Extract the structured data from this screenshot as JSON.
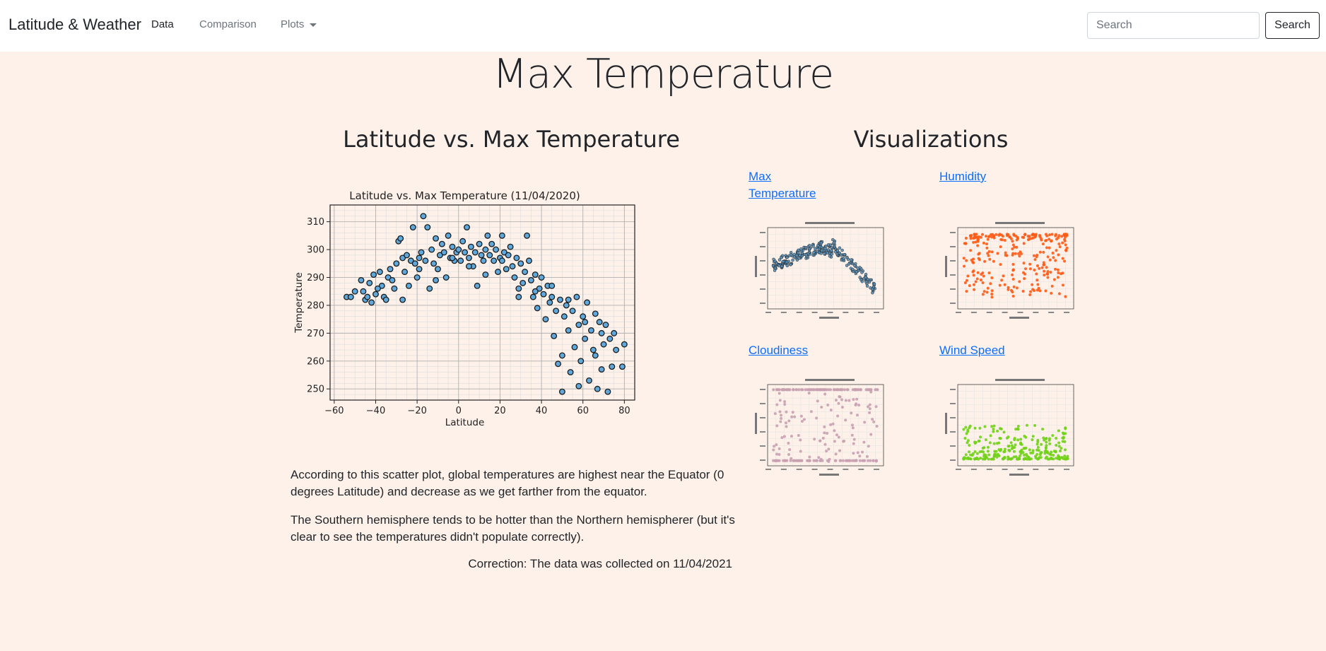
{
  "navbar": {
    "brand": "Latitude & Weather",
    "links": [
      {
        "label": "Data"
      },
      {
        "label": "Comparison"
      },
      {
        "label": "Plots"
      }
    ],
    "search_placeholder": "Search",
    "search_button": "Search"
  },
  "page": {
    "title": "Max Temperature",
    "chart_heading": "Latitude vs. Max Temperature",
    "viz_heading": "Visualizations",
    "paragraphs": [
      "According to this scatter plot, global temperatures are highest near the Equator (0 degrees Latitude) and decrease as we get farther from the equator.",
      "The Southern hemisphere tends to be hotter than the Northern hemispherer (but it's clear to see the temperatures didn't populate correctly)."
    ],
    "correction": "Correction: The data was collected on 11/04/2021"
  },
  "visualizations": [
    {
      "label": "Max Temperature",
      "color": "#5b8fb5"
    },
    {
      "label": "Humidity",
      "color": "#ff5a14"
    },
    {
      "label": "Cloudiness",
      "color": "#c9a0b0"
    },
    {
      "label": "Wind Speed",
      "color": "#70d216"
    }
  ],
  "chart_data": [
    {
      "type": "scatter",
      "title": "Latitude vs. Max Temperature (11/04/2020)",
      "xlabel": "Latitude",
      "ylabel": "Temperature",
      "xlim": [
        -62,
        85
      ],
      "ylim": [
        246,
        316
      ],
      "xticks": [
        -60,
        -40,
        -20,
        0,
        20,
        40,
        60,
        80
      ],
      "yticks": [
        250,
        260,
        270,
        280,
        290,
        300,
        310
      ],
      "grid": true,
      "marker_color": "#5fa8dc",
      "points": [
        [
          -54,
          283
        ],
        [
          -52,
          283
        ],
        [
          -50,
          285
        ],
        [
          -46,
          285
        ],
        [
          -45,
          282
        ],
        [
          -44,
          283
        ],
        [
          -43,
          288
        ],
        [
          -42,
          281
        ],
        [
          -41,
          291
        ],
        [
          -40,
          284
        ],
        [
          -38,
          292
        ],
        [
          -37,
          287
        ],
        [
          -36,
          283
        ],
        [
          -35,
          282
        ],
        [
          -34,
          290
        ],
        [
          -33,
          293
        ],
        [
          -32,
          289
        ],
        [
          -31,
          286
        ],
        [
          -30,
          295
        ],
        [
          -29,
          303
        ],
        [
          -28,
          304
        ],
        [
          -27,
          297
        ],
        [
          -26,
          292
        ],
        [
          -25,
          298
        ],
        [
          -24,
          287
        ],
        [
          -23,
          296
        ],
        [
          -22,
          308
        ],
        [
          -21,
          295
        ],
        [
          -20,
          290
        ],
        [
          -19,
          297
        ],
        [
          -18,
          299
        ],
        [
          -17,
          312
        ],
        [
          -16,
          296
        ],
        [
          -15,
          308
        ],
        [
          -14,
          286
        ],
        [
          -13,
          300
        ],
        [
          -12,
          295
        ],
        [
          -11,
          304
        ],
        [
          -10,
          293
        ],
        [
          -9,
          298
        ],
        [
          -8,
          302
        ],
        [
          -7,
          299
        ],
        [
          -6,
          290
        ],
        [
          -5,
          305
        ],
        [
          -4,
          297
        ],
        [
          -3,
          301
        ],
        [
          -2,
          296
        ],
        [
          -1,
          299
        ],
        [
          0,
          300
        ],
        [
          1,
          296
        ],
        [
          2,
          303
        ],
        [
          3,
          299
        ],
        [
          4,
          308
        ],
        [
          5,
          297
        ],
        [
          6,
          301
        ],
        [
          7,
          294
        ],
        [
          8,
          299
        ],
        [
          9,
          287
        ],
        [
          10,
          302
        ],
        [
          11,
          298
        ],
        [
          12,
          296
        ],
        [
          13,
          300
        ],
        [
          14,
          305
        ],
        [
          15,
          298
        ],
        [
          16,
          302
        ],
        [
          17,
          296
        ],
        [
          18,
          300
        ],
        [
          19,
          292
        ],
        [
          20,
          297
        ],
        [
          21,
          305
        ],
        [
          22,
          299
        ],
        [
          23,
          293
        ],
        [
          24,
          298
        ],
        [
          25,
          301
        ],
        [
          26,
          294
        ],
        [
          27,
          290
        ],
        [
          28,
          297
        ],
        [
          29,
          286
        ],
        [
          30,
          295
        ],
        [
          31,
          288
        ],
        [
          32,
          292
        ],
        [
          33,
          305
        ],
        [
          34,
          296
        ],
        [
          35,
          289
        ],
        [
          36,
          283
        ],
        [
          37,
          291
        ],
        [
          38,
          279
        ],
        [
          39,
          286
        ],
        [
          40,
          290
        ],
        [
          41,
          284
        ],
        [
          42,
          275
        ],
        [
          43,
          287
        ],
        [
          44,
          281
        ],
        [
          45,
          283
        ],
        [
          46,
          269
        ],
        [
          47,
          278
        ],
        [
          48,
          259
        ],
        [
          49,
          282
        ],
        [
          50,
          262
        ],
        [
          51,
          276
        ],
        [
          52,
          280
        ],
        [
          53,
          271
        ],
        [
          54,
          256
        ],
        [
          55,
          278
        ],
        [
          56,
          265
        ],
        [
          57,
          283
        ],
        [
          58,
          273
        ],
        [
          59,
          260
        ],
        [
          60,
          276
        ],
        [
          61,
          268
        ],
        [
          62,
          281
        ],
        [
          63,
          253
        ],
        [
          64,
          271
        ],
        [
          65,
          264
        ],
        [
          66,
          277
        ],
        [
          67,
          250
        ],
        [
          68,
          274
        ],
        [
          69,
          257
        ],
        [
          70,
          266
        ],
        [
          71,
          273
        ],
        [
          72,
          249
        ],
        [
          73,
          268
        ],
        [
          74,
          258
        ],
        [
          75,
          270
        ],
        [
          76,
          264
        ],
        [
          80,
          266
        ],
        [
          79,
          258
        ],
        [
          -47,
          289
        ],
        [
          -39,
          286
        ],
        [
          -27,
          282
        ],
        [
          -19,
          293
        ],
        [
          -11,
          289
        ],
        [
          -3,
          297
        ],
        [
          5,
          294
        ],
        [
          13,
          291
        ],
        [
          21,
          296
        ],
        [
          29,
          283
        ],
        [
          37,
          285
        ],
        [
          45,
          287
        ],
        [
          53,
          282
        ],
        [
          61,
          274
        ],
        [
          69,
          270
        ],
        [
          50,
          249
        ],
        [
          58,
          251
        ],
        [
          66,
          262
        ]
      ]
    }
  ]
}
